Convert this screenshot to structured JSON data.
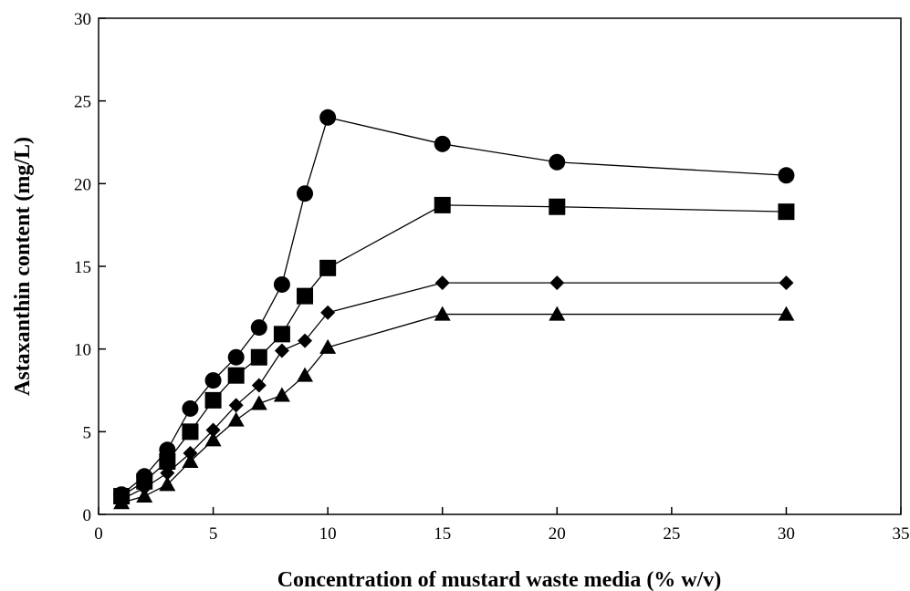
{
  "chart_data": {
    "type": "line",
    "title": "",
    "xlabel": "Concentration of mustard waste media (% w/v)",
    "ylabel": "Astaxanthin content (mg/L)",
    "xlim": [
      0,
      35
    ],
    "ylim": [
      0,
      30
    ],
    "xticks": [
      "0",
      "5",
      "10",
      "15",
      "20",
      "25",
      "30",
      "35"
    ],
    "yticks": [
      "0",
      "5",
      "10",
      "15",
      "20",
      "25",
      "30"
    ],
    "grid": false,
    "legend": "none",
    "x": [
      1,
      2,
      3,
      4,
      5,
      6,
      7,
      8,
      9,
      10,
      15,
      20,
      30
    ],
    "series": [
      {
        "marker": "circle",
        "color": "#000000",
        "values": [
          1.2,
          2.3,
          3.9,
          6.4,
          8.1,
          9.5,
          11.3,
          13.9,
          19.4,
          24.0,
          22.4,
          21.3,
          20.5
        ]
      },
      {
        "marker": "square",
        "color": "#000000",
        "values": [
          1.1,
          2.0,
          3.2,
          5.0,
          6.9,
          8.4,
          9.5,
          10.9,
          13.2,
          14.9,
          18.7,
          18.6,
          18.3
        ]
      },
      {
        "marker": "diamond",
        "color": "#000000",
        "values": [
          0.9,
          1.6,
          2.5,
          3.7,
          5.1,
          6.6,
          7.8,
          9.9,
          10.5,
          12.2,
          14.0,
          14.0,
          14.0
        ]
      },
      {
        "marker": "triangle",
        "color": "#000000",
        "values": [
          0.7,
          1.1,
          1.8,
          3.2,
          4.5,
          5.7,
          6.7,
          7.2,
          8.4,
          10.1,
          12.1,
          12.1,
          12.1
        ]
      }
    ]
  }
}
